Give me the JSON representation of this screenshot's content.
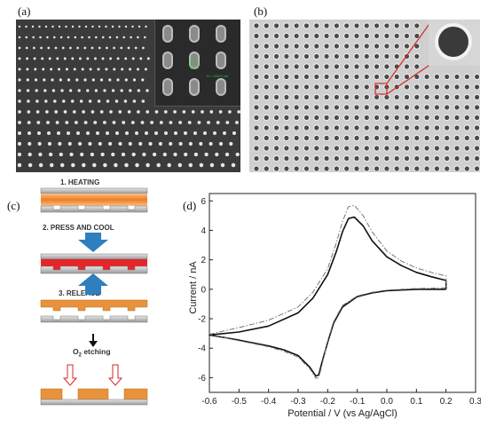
{
  "panels": {
    "a": "(a)",
    "b": "(b)",
    "c": "(c)",
    "d": "(d)"
  },
  "sem_a": {
    "inset_measure_text": "H = 334.9 nm",
    "background_color": "#3b3b3b",
    "inset_color": "#2a2a2a"
  },
  "sem_b": {
    "background_color": "#cfcfcf",
    "highlight_color": "#d42a2a"
  },
  "process": {
    "steps": [
      "1. HEATING",
      "2. PRESS AND COOL",
      "3. RELEASE"
    ],
    "o2_prefix": "O",
    "o2_sub": "2",
    "o2_suffix": " etching",
    "arrow_color": "#2f7ebd",
    "polymer_color": "#e8933c",
    "pressed_color": "#e4262a"
  },
  "chart_data": {
    "type": "line",
    "xlabel": "Potential / V (vs Ag/AgCl)",
    "ylabel": "Current / nA",
    "xlim": [
      -0.6,
      0.3
    ],
    "ylim": [
      -7,
      6.5
    ],
    "xticks": [
      -0.6,
      -0.5,
      -0.4,
      -0.3,
      -0.2,
      -0.1,
      0.0,
      0.1,
      0.2,
      0.3
    ],
    "xtick_labels": [
      "-0.6",
      "-0.5",
      "-0.4",
      "-0.3",
      "-0.2",
      "-0.1",
      "0.0",
      "0.1",
      "0.2",
      "0.3"
    ],
    "yticks": [
      -6,
      -4,
      -2,
      0,
      2,
      4,
      6
    ],
    "ytick_labels": [
      "-6",
      "-4",
      "-2",
      "0",
      "2",
      "4",
      "6"
    ],
    "series": [
      {
        "style": "solid",
        "color": "#111111",
        "x": [
          0.2,
          0.1,
          0.0,
          -0.05,
          -0.1,
          -0.15,
          -0.18,
          -0.2,
          -0.22,
          -0.23,
          -0.24,
          -0.26,
          -0.3,
          -0.35,
          -0.4,
          -0.45,
          -0.5,
          -0.6,
          -0.5,
          -0.4,
          -0.3,
          -0.25,
          -0.2,
          -0.17,
          -0.15,
          -0.13,
          -0.11,
          -0.08,
          -0.05,
          0.0,
          0.05,
          0.1,
          0.15,
          0.2,
          0.2
        ],
        "y": [
          0.0,
          0.0,
          -0.1,
          -0.25,
          -0.5,
          -1.2,
          -2.3,
          -3.6,
          -5.0,
          -5.8,
          -5.9,
          -5.3,
          -4.5,
          -4.1,
          -3.85,
          -3.65,
          -3.45,
          -3.1,
          -2.9,
          -2.5,
          -1.6,
          -0.6,
          1.0,
          2.6,
          3.9,
          4.8,
          4.9,
          4.3,
          3.3,
          2.2,
          1.6,
          1.15,
          0.85,
          0.6,
          0.0
        ]
      },
      {
        "style": "dash-dot",
        "color": "#777777",
        "x": [
          0.2,
          0.1,
          0.0,
          -0.05,
          -0.1,
          -0.15,
          -0.18,
          -0.2,
          -0.22,
          -0.23,
          -0.24,
          -0.26,
          -0.3,
          -0.35,
          -0.4,
          -0.45,
          -0.5,
          -0.6,
          -0.5,
          -0.4,
          -0.3,
          -0.25,
          -0.2,
          -0.17,
          -0.15,
          -0.13,
          -0.11,
          -0.08,
          -0.05,
          0.0,
          0.05,
          0.1,
          0.15,
          0.2,
          0.2
        ],
        "y": [
          0.1,
          0.05,
          -0.05,
          -0.2,
          -0.45,
          -1.1,
          -2.2,
          -3.5,
          -5.2,
          -6.0,
          -6.05,
          -5.4,
          -4.6,
          -4.2,
          -3.9,
          -3.7,
          -3.5,
          -3.05,
          -2.6,
          -2.1,
          -1.2,
          -0.2,
          1.4,
          3.2,
          4.6,
          5.6,
          5.7,
          5.0,
          3.9,
          2.6,
          1.9,
          1.45,
          1.15,
          0.9,
          0.1
        ]
      }
    ]
  }
}
